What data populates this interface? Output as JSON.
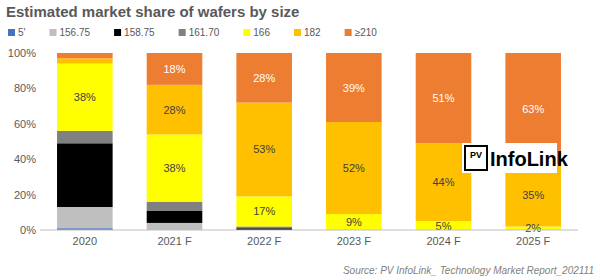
{
  "chart_data": {
    "type": "bar",
    "title": "Estimated market share of wafers by size",
    "categories": [
      "2020",
      "2021 F",
      "2022 F",
      "2023 F",
      "2024 F",
      "2025 F"
    ],
    "stacked": true,
    "data_labels": true,
    "grid": false,
    "legend": "top",
    "ylim": [
      0,
      100
    ],
    "yticks": [
      {
        "value": 0,
        "label": "0%"
      },
      {
        "value": 20,
        "label": "20%"
      },
      {
        "value": 40,
        "label": "40%"
      },
      {
        "value": 60,
        "label": "60%"
      },
      {
        "value": 80,
        "label": "80%"
      },
      {
        "value": 100,
        "label": "100%"
      }
    ],
    "series": [
      {
        "name": "5'",
        "color": "#4472c4",
        "values": [
          1,
          0,
          0,
          0,
          0,
          0
        ],
        "value_labels": [
          null,
          null,
          null,
          null,
          null,
          null
        ]
      },
      {
        "name": "156.75",
        "color": "#bfbfbf",
        "values": [
          12,
          4,
          0,
          0,
          0,
          0
        ],
        "value_labels": [
          null,
          null,
          null,
          null,
          null,
          null
        ]
      },
      {
        "name": "158.75",
        "color": "#000000",
        "values": [
          36,
          7,
          1,
          0,
          0,
          0
        ],
        "value_labels": [
          null,
          null,
          null,
          null,
          null,
          null
        ]
      },
      {
        "name": "161.70",
        "color": "#808080",
        "values": [
          7,
          5,
          1,
          0,
          0,
          0
        ],
        "value_labels": [
          null,
          null,
          null,
          null,
          null,
          null
        ]
      },
      {
        "name": "166",
        "color": "#ffff00",
        "values": [
          38,
          38,
          17,
          9,
          5,
          2
        ],
        "value_labels": [
          "38%",
          "38%",
          "17%",
          "9%",
          "5%",
          "2%"
        ]
      },
      {
        "name": "182",
        "color": "#ffc000",
        "values": [
          3,
          28,
          53,
          52,
          44,
          35
        ],
        "value_labels": [
          null,
          "28%",
          "53%",
          "52%",
          "44%",
          "35%"
        ]
      },
      {
        "name": "≥210",
        "color": "#ed7d31",
        "values": [
          3,
          18,
          28,
          39,
          51,
          63
        ],
        "value_labels": [
          null,
          "18%",
          "28%",
          "39%",
          "51%",
          "63%"
        ]
      }
    ],
    "annotations": [
      "PV",
      "InfoLink"
    ],
    "source": "Source: PV InfoLink_ Technology Market Report_202111"
  }
}
